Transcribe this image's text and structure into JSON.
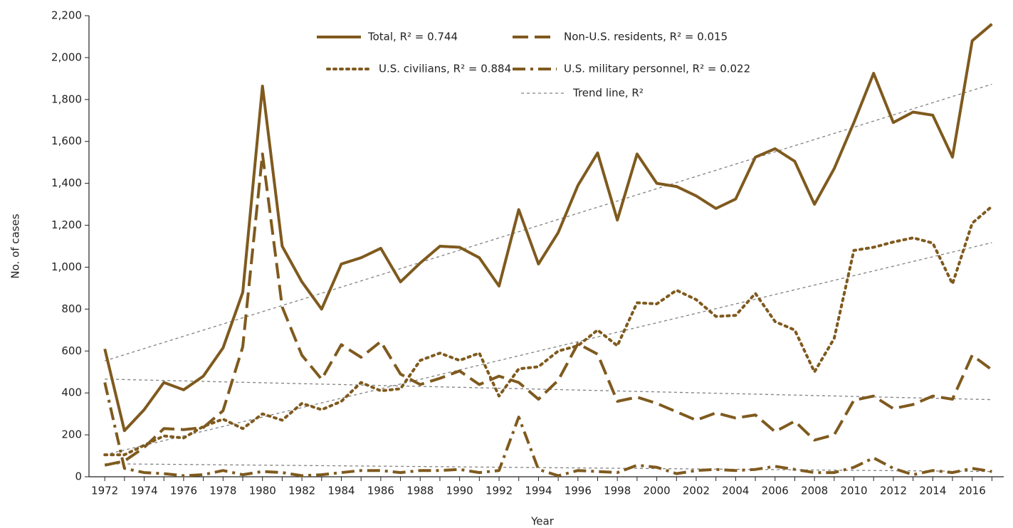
{
  "chart_data": {
    "type": "line",
    "x_label": "Year",
    "y_label": "No. of cases",
    "x": [
      1972,
      1973,
      1974,
      1975,
      1976,
      1977,
      1978,
      1979,
      1980,
      1981,
      1982,
      1983,
      1984,
      1985,
      1986,
      1987,
      1988,
      1989,
      1990,
      1991,
      1992,
      1993,
      1994,
      1995,
      1996,
      1997,
      1998,
      1999,
      2000,
      2001,
      2002,
      2003,
      2004,
      2005,
      2006,
      2007,
      2008,
      2009,
      2010,
      2011,
      2012,
      2013,
      2014,
      2015,
      2016,
      2017
    ],
    "series": [
      {
        "name": "Total, R² = 0.744",
        "color": "#7f5a1e",
        "style": "solid",
        "values": [
          610,
          220,
          320,
          450,
          415,
          480,
          615,
          880,
          1864,
          1100,
          930,
          800,
          1015,
          1045,
          1090,
          930,
          1020,
          1100,
          1095,
          1045,
          910,
          1275,
          1015,
          1165,
          1390,
          1545,
          1225,
          1540,
          1400,
          1385,
          1340,
          1280,
          1325,
          1525,
          1565,
          1505,
          1300,
          1470,
          1690,
          1925,
          1690,
          1740,
          1725,
          1525,
          2080,
          2160
        ]
      },
      {
        "name": "Non-U.S. residents, R² = 0.015",
        "color": "#7f5a1e",
        "style": "dashed",
        "values": [
          55,
          75,
          140,
          230,
          225,
          235,
          315,
          620,
          1540,
          810,
          580,
          465,
          630,
          570,
          645,
          490,
          440,
          470,
          505,
          440,
          480,
          450,
          370,
          460,
          635,
          585,
          360,
          380,
          350,
          310,
          270,
          305,
          280,
          295,
          215,
          265,
          175,
          200,
          365,
          385,
          325,
          345,
          385,
          370,
          580,
          510
        ]
      },
      {
        "name": "U.S. civilians, R² = 0.884",
        "color": "#7f5a1e",
        "style": "dotted",
        "values": [
          105,
          105,
          150,
          195,
          185,
          240,
          275,
          230,
          300,
          270,
          350,
          320,
          360,
          450,
          410,
          420,
          555,
          590,
          555,
          590,
          385,
          515,
          525,
          600,
          625,
          700,
          625,
          830,
          825,
          890,
          845,
          765,
          770,
          875,
          740,
          700,
          500,
          660,
          1080,
          1095,
          1120,
          1140,
          1115,
          920,
          1210,
          1290
        ]
      },
      {
        "name": "U.S. military personnel, R² = 0.022",
        "color": "#7f5a1e",
        "style": "dashdot",
        "values": [
          450,
          40,
          20,
          15,
          5,
          10,
          30,
          10,
          25,
          20,
          5,
          10,
          20,
          30,
          30,
          20,
          30,
          30,
          35,
          20,
          30,
          285,
          35,
          5,
          30,
          25,
          20,
          55,
          45,
          15,
          30,
          35,
          30,
          35,
          50,
          35,
          20,
          20,
          45,
          90,
          40,
          10,
          30,
          20,
          40,
          25
        ]
      }
    ],
    "trend_name": "Trend line, R²",
    "trend_color": "#808080",
    "trend_x": [
      1972,
      2017
    ],
    "trend_lines": [
      [
        553,
        1873
      ],
      [
        466,
        368
      ],
      [
        105,
        1117
      ],
      [
        62,
        25
      ]
    ],
    "xlim": [
      1971.2,
      2017.6
    ],
    "xticks": [
      1972,
      1974,
      1976,
      1978,
      1980,
      1982,
      1984,
      1986,
      1988,
      1990,
      1992,
      1994,
      1996,
      1998,
      2000,
      2002,
      2004,
      2006,
      2008,
      2010,
      2012,
      2014,
      2016
    ],
    "ylim": [
      0,
      2200
    ],
    "yticks": [
      0,
      200,
      400,
      600,
      800,
      {
        "value": 1000,
        "label": "1,000"
      },
      {
        "value": 1200,
        "label": "1,200"
      },
      {
        "value": 1400,
        "label": "1,400"
      },
      {
        "value": 1600,
        "label": "1,600"
      },
      {
        "value": 1800,
        "label": "1,800"
      },
      {
        "value": 2000,
        "label": "2,000"
      },
      {
        "value": 2200,
        "label": "2,200"
      }
    ]
  }
}
